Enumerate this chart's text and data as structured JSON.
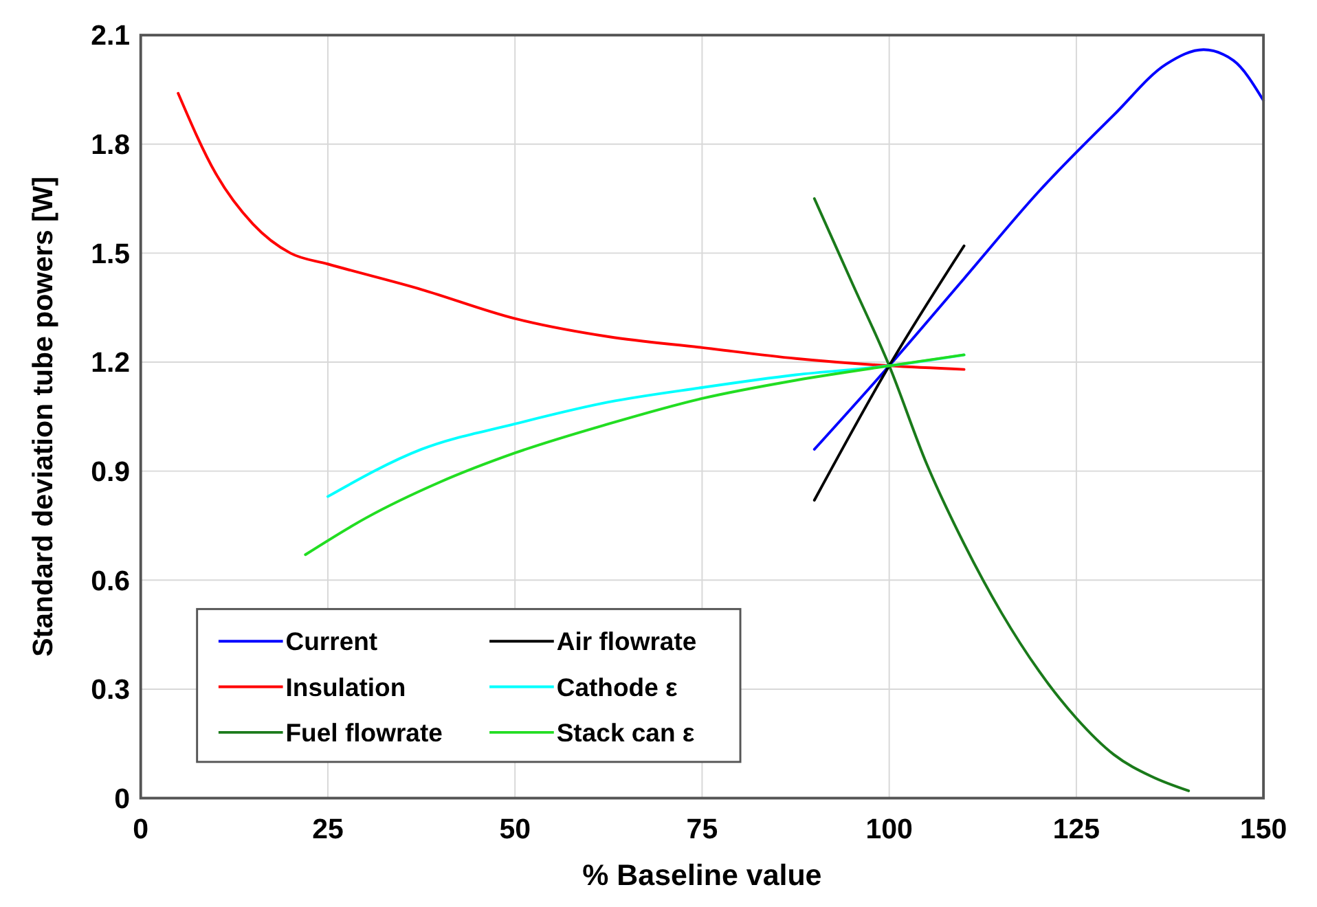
{
  "chart_data": {
    "type": "line",
    "xlabel": "% Baseline value",
    "ylabel": "Standard deviation tube powers [W]",
    "xlim": [
      0,
      150
    ],
    "ylim": [
      0,
      2.1
    ],
    "xticks": [
      0,
      25,
      50,
      75,
      100,
      125,
      150
    ],
    "yticks": [
      0,
      0.3,
      0.6,
      0.9,
      1.2,
      1.5,
      1.8,
      2.1
    ],
    "grid": true,
    "legend": "bottom left",
    "marker": "none",
    "line_style": "solid",
    "series": [
      {
        "name": "Current",
        "color": "#0000ff",
        "x": [
          90,
          100,
          110,
          120,
          130,
          137,
          142,
          146,
          150
        ],
        "values": [
          0.96,
          1.19,
          1.43,
          1.67,
          1.88,
          2.02,
          2.06,
          2.03,
          1.92
        ]
      },
      {
        "name": "Insulation",
        "color": "#ff0000",
        "x": [
          5,
          10,
          15,
          20,
          25,
          37.5,
          50,
          62.5,
          75,
          87.5,
          100,
          110
        ],
        "values": [
          1.94,
          1.72,
          1.58,
          1.5,
          1.47,
          1.4,
          1.32,
          1.27,
          1.24,
          1.21,
          1.19,
          1.18
        ]
      },
      {
        "name": "Fuel flowrate",
        "color": "#1a7a1a",
        "x": [
          90,
          95,
          100,
          105,
          110,
          115,
          120,
          125,
          130,
          135,
          140
        ],
        "values": [
          1.65,
          1.42,
          1.19,
          0.92,
          0.7,
          0.51,
          0.35,
          0.22,
          0.12,
          0.06,
          0.02
        ]
      },
      {
        "name": "Air flowrate",
        "color": "#000000",
        "x": [
          90,
          100,
          110
        ],
        "values": [
          0.82,
          1.19,
          1.52
        ]
      },
      {
        "name": "Cathode ε",
        "color": "#00ffff",
        "x": [
          25,
          37.5,
          50,
          62.5,
          75,
          87.5,
          100,
          110
        ],
        "values": [
          0.83,
          0.96,
          1.03,
          1.09,
          1.13,
          1.165,
          1.19,
          1.22
        ]
      },
      {
        "name": "Stack can ε",
        "color": "#22dd22",
        "x": [
          22,
          30,
          40,
          50,
          62.5,
          75,
          87.5,
          100,
          110
        ],
        "values": [
          0.67,
          0.77,
          0.87,
          0.95,
          1.03,
          1.1,
          1.15,
          1.19,
          1.22
        ]
      }
    ]
  }
}
